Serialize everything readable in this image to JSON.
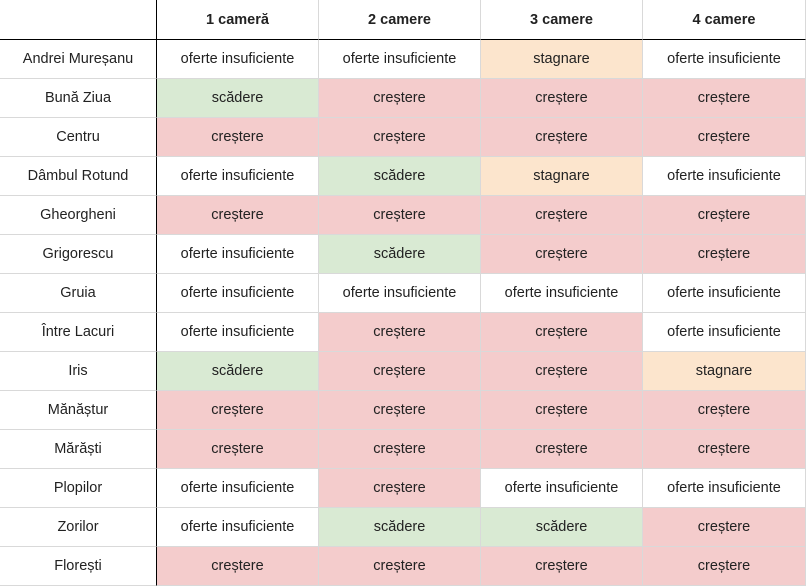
{
  "colors": {
    "crestere": "#f4cccc",
    "scadere": "#d9ead3",
    "stagnare": "#fce5cd",
    "oferte_insuficiente": "#ffffff"
  },
  "headers": [
    "",
    "1 cameră",
    "2 camere",
    "3 camere",
    "4 camere"
  ],
  "rows": [
    {
      "name": "Andrei Mureșanu",
      "cells": [
        "oferte insuficiente",
        "oferte insuficiente",
        "stagnare",
        "oferte insuficiente"
      ]
    },
    {
      "name": "Bună Ziua",
      "cells": [
        "scădere",
        "creștere",
        "creștere",
        "creștere"
      ]
    },
    {
      "name": "Centru",
      "cells": [
        "creștere",
        "creștere",
        "creștere",
        "creștere"
      ]
    },
    {
      "name": "Dâmbul Rotund",
      "cells": [
        "oferte insuficiente",
        "scădere",
        "stagnare",
        "oferte insuficiente"
      ]
    },
    {
      "name": "Gheorgheni",
      "cells": [
        "creștere",
        "creștere",
        "creștere",
        "creștere"
      ]
    },
    {
      "name": "Grigorescu",
      "cells": [
        "oferte insuficiente",
        "scădere",
        "creștere",
        "creștere"
      ]
    },
    {
      "name": "Gruia",
      "cells": [
        "oferte insuficiente",
        "oferte insuficiente",
        "oferte insuficiente",
        "oferte insuficiente"
      ]
    },
    {
      "name": "Între Lacuri",
      "cells": [
        "oferte insuficiente",
        "creștere",
        "creștere",
        "oferte insuficiente"
      ]
    },
    {
      "name": "Iris",
      "cells": [
        "scădere",
        "creștere",
        "creștere",
        "stagnare"
      ]
    },
    {
      "name": "Mănăștur",
      "cells": [
        "creștere",
        "creștere",
        "creștere",
        "creștere"
      ]
    },
    {
      "name": "Mărăști",
      "cells": [
        "creștere",
        "creștere",
        "creștere",
        "creștere"
      ]
    },
    {
      "name": "Plopilor",
      "cells": [
        "oferte insuficiente",
        "creștere",
        "oferte insuficiente",
        "oferte insuficiente"
      ]
    },
    {
      "name": "Zorilor",
      "cells": [
        "oferte insuficiente",
        "scădere",
        "scădere",
        "creștere"
      ]
    },
    {
      "name": "Florești",
      "cells": [
        "creștere",
        "creștere",
        "creștere",
        "creștere"
      ]
    }
  ]
}
